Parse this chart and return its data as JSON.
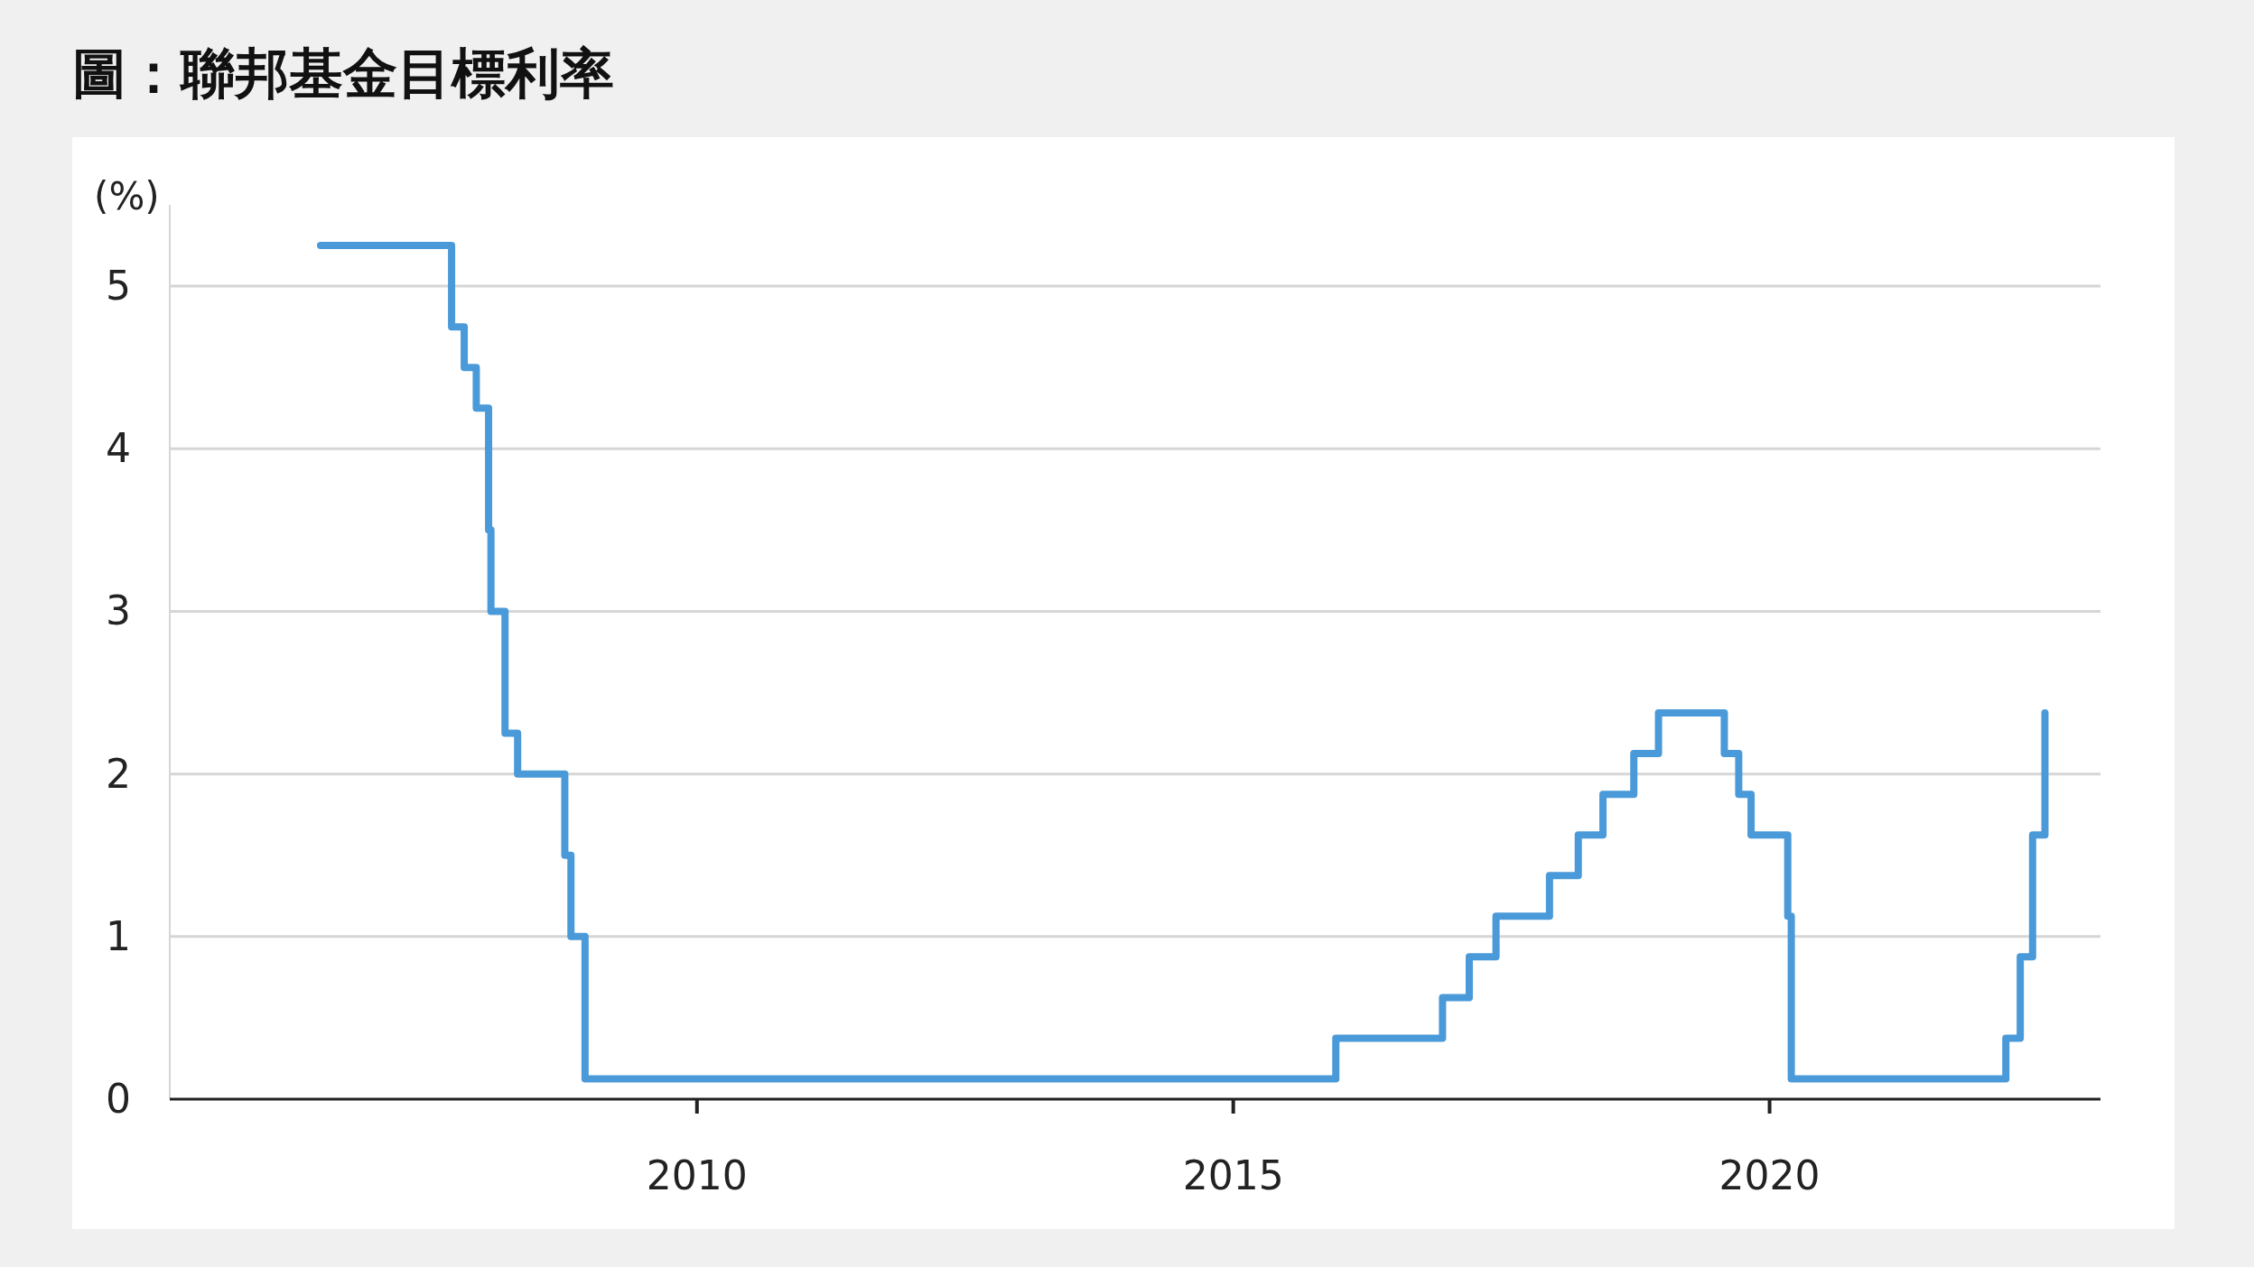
{
  "chart_data": {
    "type": "step",
    "title": "圖：聯邦基金目標利率",
    "ylabel": "(%)",
    "x": [
      "2006-06-29",
      "2007-09-18",
      "2007-10-31",
      "2007-12-11",
      "2008-01-22",
      "2008-01-30",
      "2008-03-18",
      "2008-04-30",
      "2008-10-08",
      "2008-10-29",
      "2008-12-16",
      "2015-12-16",
      "2016-12-14",
      "2017-03-15",
      "2017-06-14",
      "2017-12-13",
      "2018-03-21",
      "2018-06-13",
      "2018-09-26",
      "2018-12-19",
      "2019-07-31",
      "2019-09-18",
      "2019-10-30",
      "2020-03-03",
      "2020-03-15",
      "2022-03-16",
      "2022-05-04",
      "2022-06-15",
      "2022-07-27"
    ],
    "series": [
      {
        "color": "#4a9ad9",
        "values": [
          5.25,
          4.75,
          4.5,
          4.25,
          3.5,
          3.0,
          2.25,
          2.0,
          1.5,
          1.0,
          0.125,
          0.375,
          0.625,
          0.875,
          1.125,
          1.375,
          1.625,
          1.875,
          2.125,
          2.375,
          2.125,
          1.875,
          1.625,
          1.125,
          0.125,
          0.375,
          0.875,
          1.625,
          2.375
        ]
      }
    ],
    "xlim": [
      "2005-02-01",
      "2023-02-01"
    ],
    "xticks": [
      "2010",
      "2015",
      "2020"
    ],
    "ylim": [
      0,
      5.5
    ],
    "yticks": [
      0,
      1,
      2,
      3,
      4,
      5
    ],
    "grid": "y"
  }
}
